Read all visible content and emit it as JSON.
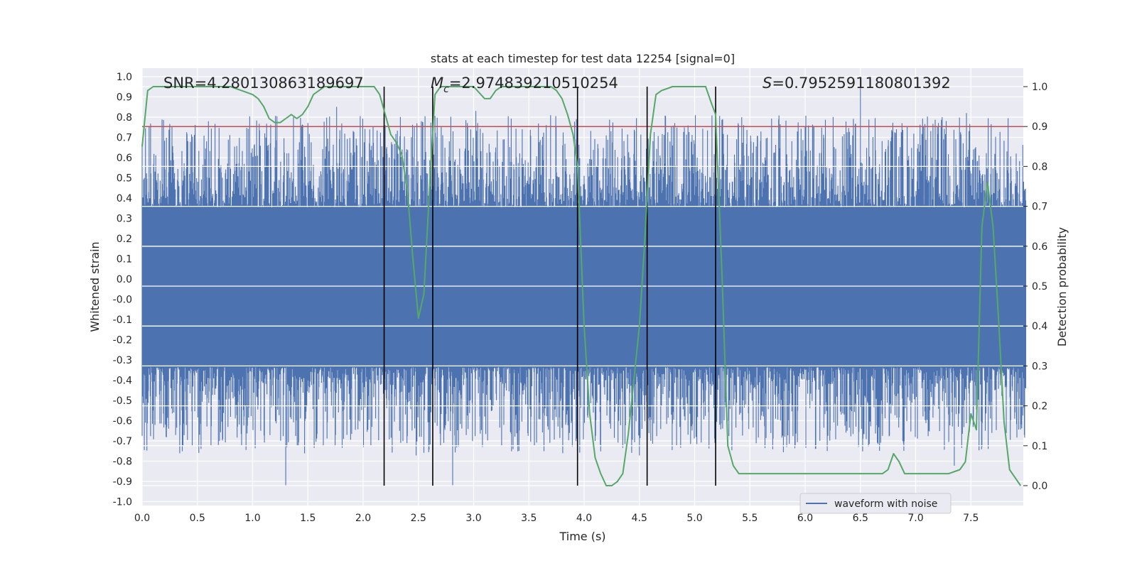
{
  "chart_data": {
    "type": "line",
    "title": "stats at each timestep for test data 12254 [signal=0]",
    "xlabel": "Time (s)",
    "ylabel": "Whitened strain",
    "y2label": "Detection probability",
    "xlim": [
      0.0,
      8.0
    ],
    "ylim": [
      -1.1,
      1.1
    ],
    "y2lim": [
      -0.05,
      1.04
    ],
    "xticks": [
      "0.0",
      "0.5",
      "1.0",
      "1.5",
      "2.0",
      "2.5",
      "3.0",
      "3.5",
      "4.0",
      "4.5",
      "5.0",
      "5.5",
      "6.0",
      "6.5",
      "7.0",
      "7.5"
    ],
    "yticks": [
      "1.0",
      "0.9",
      "0.8",
      "0.7",
      "0.6",
      "0.5",
      "0.4",
      "0.3",
      "0.2",
      "0.1",
      "0.0",
      "-0.0",
      "-0.1",
      "-0.2",
      "-0.3",
      "-0.4",
      "-0.5",
      "-0.6",
      "-0.7",
      "-0.8",
      "-0.9",
      "-1.0"
    ],
    "y2ticks": [
      "1.0",
      "0.9",
      "0.8",
      "0.7",
      "0.6",
      "0.5",
      "0.4",
      "0.3",
      "0.2",
      "0.1",
      "0.0"
    ],
    "grid": true,
    "legend": {
      "entries": [
        "waveform with noise"
      ],
      "location": "lower-right"
    },
    "annotations": {
      "snr": "SNR=4.280130863189697",
      "mc_symbol": "M",
      "mc_sub": "c",
      "mc_value": "=2.974839210510254",
      "s_symbol": "S",
      "s_value": "=0.7952591180801392"
    },
    "threshold": {
      "value": 0.9,
      "axis": "y2",
      "color": "#c44e52"
    },
    "vlines": [
      2.19,
      2.63,
      3.94,
      4.57,
      5.19
    ],
    "waveform": {
      "name": "waveform with noise",
      "color": "#4c72b0",
      "band": [
        -0.42,
        0.36
      ],
      "peaks": [
        {
          "x": 0.6,
          "y": 0.78
        },
        {
          "x": 1.3,
          "y": -1.0
        },
        {
          "x": 1.37,
          "y": 0.8
        },
        {
          "x": 1.76,
          "y": 0.85
        },
        {
          "x": 2.36,
          "y": -0.78
        },
        {
          "x": 2.48,
          "y": -0.85
        },
        {
          "x": 2.81,
          "y": -1.0
        },
        {
          "x": 3.02,
          "y": 0.83
        },
        {
          "x": 3.4,
          "y": -0.83
        },
        {
          "x": 4.15,
          "y": -0.83
        },
        {
          "x": 4.5,
          "y": -0.85
        },
        {
          "x": 6.5,
          "y": 0.95
        },
        {
          "x": 6.52,
          "y": -0.83
        },
        {
          "x": 7.35,
          "y": -0.9
        },
        {
          "x": 7.46,
          "y": 0.82
        },
        {
          "x": 7.24,
          "y": 0.8
        },
        {
          "x": 7.7,
          "y": 0.55
        }
      ]
    },
    "probability": {
      "name": "detection probability",
      "color": "#55a868",
      "x": [
        0.0,
        0.05,
        0.1,
        0.15,
        0.2,
        0.3,
        0.4,
        0.5,
        0.6,
        0.7,
        0.8,
        0.9,
        1.0,
        1.05,
        1.1,
        1.15,
        1.2,
        1.25,
        1.3,
        1.35,
        1.4,
        1.45,
        1.5,
        1.55,
        1.6,
        1.65,
        1.7,
        1.8,
        1.9,
        2.0,
        2.1,
        2.15,
        2.2,
        2.25,
        2.3,
        2.35,
        2.4,
        2.45,
        2.5,
        2.55,
        2.6,
        2.65,
        2.7,
        2.75,
        2.8,
        2.9,
        3.0,
        3.1,
        3.15,
        3.2,
        3.25,
        3.3,
        3.4,
        3.45,
        3.5,
        3.6,
        3.7,
        3.75,
        3.8,
        3.85,
        3.9,
        3.94,
        4.0,
        4.05,
        4.1,
        4.15,
        4.2,
        4.25,
        4.3,
        4.35,
        4.4,
        4.5,
        4.55,
        4.6,
        4.65,
        4.7,
        4.8,
        4.9,
        5.0,
        5.1,
        5.15,
        5.19,
        5.25,
        5.3,
        5.35,
        5.4,
        5.5,
        6.0,
        6.5,
        6.7,
        6.75,
        6.8,
        6.85,
        6.9,
        7.0,
        7.1,
        7.2,
        7.3,
        7.4,
        7.45,
        7.5,
        7.55,
        7.6,
        7.65,
        7.7,
        7.75,
        7.8,
        7.85,
        7.9,
        7.95
      ],
      "y": [
        0.85,
        0.99,
        1.0,
        1.0,
        1.0,
        1.0,
        1.0,
        1.0,
        1.0,
        1.0,
        1.0,
        0.99,
        0.98,
        0.97,
        0.95,
        0.92,
        0.91,
        0.91,
        0.92,
        0.93,
        0.92,
        0.93,
        0.95,
        0.98,
        0.99,
        1.0,
        1.0,
        1.0,
        1.0,
        1.0,
        1.0,
        0.98,
        0.93,
        0.88,
        0.86,
        0.83,
        0.74,
        0.57,
        0.42,
        0.48,
        0.74,
        0.98,
        1.0,
        1.0,
        1.0,
        1.0,
        1.0,
        0.97,
        0.97,
        0.99,
        1.0,
        1.0,
        1.0,
        1.0,
        1.0,
        1.0,
        1.0,
        0.99,
        0.97,
        0.93,
        0.88,
        0.8,
        0.4,
        0.18,
        0.07,
        0.03,
        0.0,
        0.0,
        0.01,
        0.03,
        0.13,
        0.4,
        0.62,
        0.88,
        0.98,
        0.99,
        1.0,
        1.0,
        1.0,
        1.0,
        0.96,
        0.93,
        0.51,
        0.1,
        0.05,
        0.03,
        0.03,
        0.03,
        0.03,
        0.03,
        0.04,
        0.08,
        0.06,
        0.03,
        0.03,
        0.03,
        0.03,
        0.03,
        0.04,
        0.06,
        0.18,
        0.14,
        0.65,
        0.76,
        0.65,
        0.42,
        0.16,
        0.04,
        0.02,
        0.0
      ]
    }
  }
}
